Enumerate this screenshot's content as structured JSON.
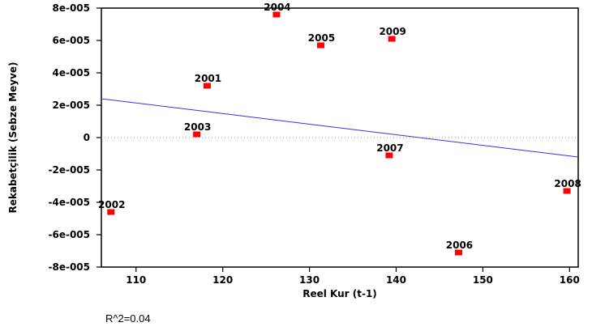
{
  "chart_data": {
    "type": "scatter",
    "title": "",
    "xlabel": "Reel Kur (t-1)",
    "ylabel": "Rekabetçilik (Sebze Meyve)",
    "xlim": [
      106,
      161
    ],
    "ylim": [
      -8e-05,
      8e-05
    ],
    "x_ticks": [
      110,
      120,
      130,
      140,
      150,
      160
    ],
    "x_tick_labels": [
      "110",
      "120",
      "130",
      "140",
      "150",
      "160"
    ],
    "y_ticks": [
      8e-05,
      6e-05,
      4e-05,
      2e-05,
      0,
      -2e-05,
      -4e-05,
      -6e-05,
      -8e-05
    ],
    "y_tick_labels": [
      "8e-005",
      "6e-005",
      "4e-005",
      "2e-005",
      "0",
      "-2e-005",
      "-4e-005",
      "-6e-005",
      "-8e-005"
    ],
    "points": [
      {
        "label": "2001",
        "x": 118.2,
        "y": 3.2e-05
      },
      {
        "label": "2002",
        "x": 107.1,
        "y": -4.6e-05
      },
      {
        "label": "2003",
        "x": 117.0,
        "y": 2e-06
      },
      {
        "label": "2004",
        "x": 126.2,
        "y": 7.6e-05
      },
      {
        "label": "2005",
        "x": 131.3,
        "y": 5.7e-05
      },
      {
        "label": "2006",
        "x": 147.2,
        "y": -7.1e-05
      },
      {
        "label": "2007",
        "x": 139.2,
        "y": -1.1e-05
      },
      {
        "label": "2008",
        "x": 159.7,
        "y": -3.3e-05
      },
      {
        "label": "2009",
        "x": 139.5,
        "y": 6.1e-05
      }
    ],
    "fit_line": {
      "x": [
        106,
        161
      ],
      "y": [
        2.4e-05,
        -1.2e-05
      ],
      "color": "#3333ee"
    },
    "zero_line": {
      "style": "dotted",
      "color": "#999999"
    },
    "marker_color": "#ff0000",
    "grid": false
  },
  "annotation": {
    "r_squared": "R^2=0.04"
  }
}
